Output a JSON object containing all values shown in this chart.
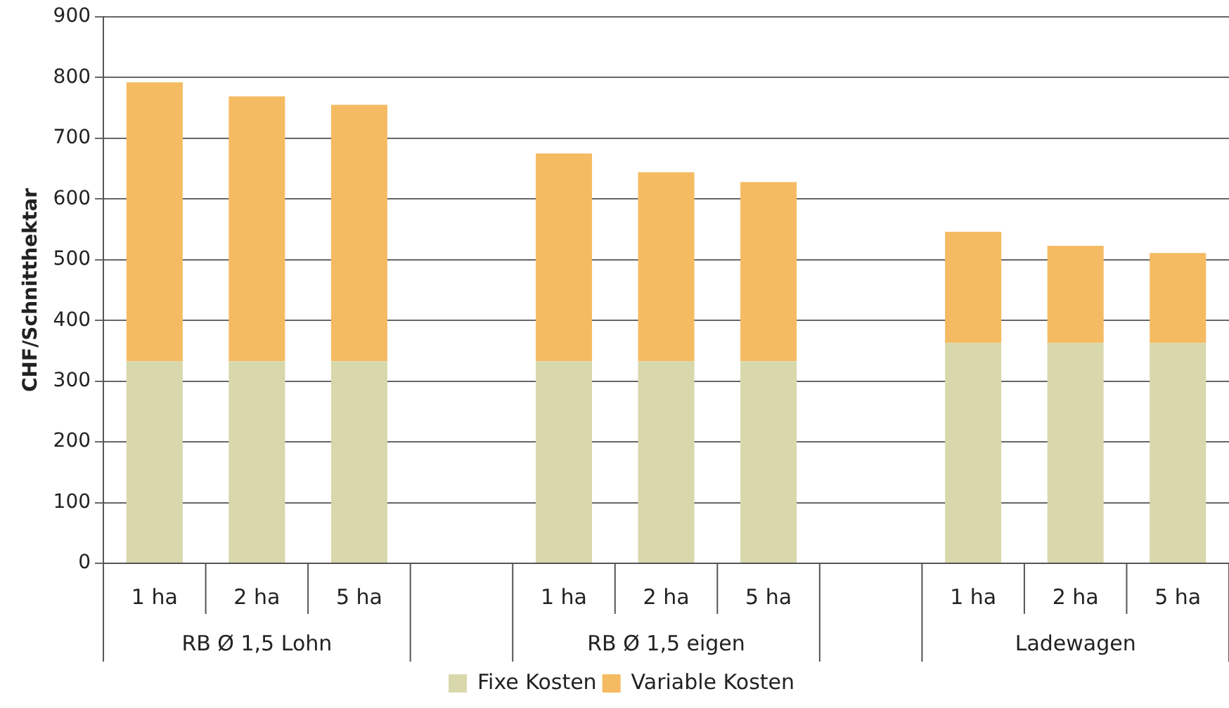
{
  "chart_data": {
    "type": "bar",
    "stacked": true,
    "ylabel": "CHF/Schnitthektar",
    "categories": [
      "1 ha",
      "2 ha",
      "5 ha",
      null,
      "1 ha",
      "2 ha",
      "5 ha",
      null,
      "1 ha",
      "2 ha",
      "5 ha"
    ],
    "series": [
      {
        "name": "Fixe Kosten",
        "color": "#d8d8ac",
        "values": [
          333,
          333,
          333,
          null,
          333,
          333,
          333,
          null,
          363,
          363,
          363
        ]
      },
      {
        "name": "Variable Kosten",
        "color": "#f5bb62",
        "values": [
          459,
          436,
          422,
          null,
          342,
          311,
          295,
          null,
          183,
          160,
          148
        ]
      }
    ],
    "annotations": [
      "RB Ø 1,5 Lohn",
      "RB Ø 1,5 eigen",
      "Ladewagen"
    ],
    "ylim": [
      0,
      900
    ],
    "yticks": [
      0,
      100,
      200,
      300,
      400,
      500,
      600,
      700,
      800,
      900
    ],
    "grid": "y",
    "legend": "bottom"
  }
}
